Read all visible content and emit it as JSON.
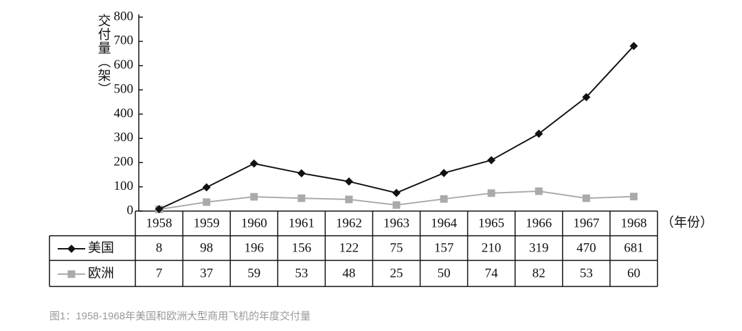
{
  "chart_data": {
    "type": "line",
    "y_label": "交付量（架）",
    "x_label": "（年份）",
    "caption": "图1：1958-1968年美国和欧洲大型商用飞机的年度交付量",
    "categories": [
      "1958",
      "1959",
      "1960",
      "1961",
      "1962",
      "1963",
      "1964",
      "1965",
      "1966",
      "1967",
      "1968"
    ],
    "series": [
      {
        "name": "美国",
        "color": "#111111",
        "marker": "diamond",
        "values": [
          8,
          98,
          196,
          156,
          122,
          75,
          157,
          210,
          319,
          470,
          681
        ]
      },
      {
        "name": "欧洲",
        "color": "#aaaaaa",
        "marker": "square",
        "values": [
          7,
          37,
          59,
          53,
          48,
          25,
          50,
          74,
          82,
          53,
          60
        ]
      }
    ],
    "ylim": [
      0,
      800
    ],
    "yticks": [
      0,
      100,
      200,
      300,
      400,
      500,
      600,
      700,
      800
    ]
  }
}
